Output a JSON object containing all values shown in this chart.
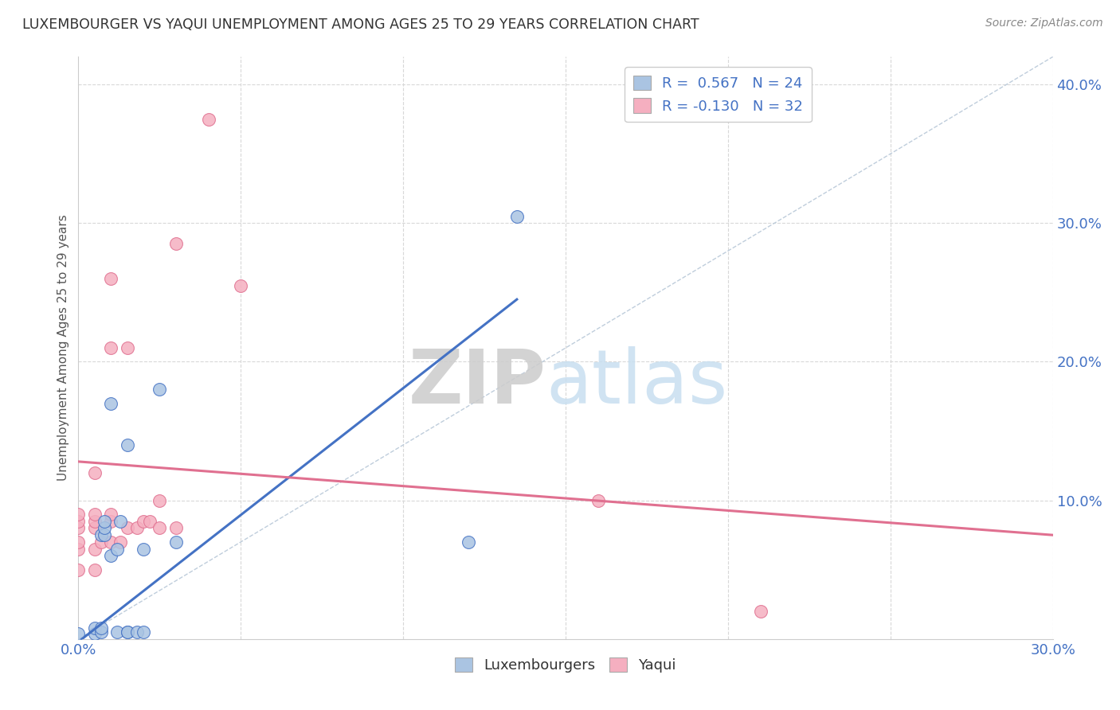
{
  "title": "LUXEMBOURGER VS YAQUI UNEMPLOYMENT AMONG AGES 25 TO 29 YEARS CORRELATION CHART",
  "source": "Source: ZipAtlas.com",
  "ylabel": "Unemployment Among Ages 25 to 29 years",
  "xlim": [
    0.0,
    0.3
  ],
  "ylim": [
    0.0,
    0.42
  ],
  "xticks": [
    0.0,
    0.05,
    0.1,
    0.15,
    0.2,
    0.25,
    0.3
  ],
  "xtick_labels": [
    "0.0%",
    "",
    "",
    "",
    "",
    "",
    "30.0%"
  ],
  "yticks": [
    0.0,
    0.1,
    0.2,
    0.3,
    0.4
  ],
  "ytick_labels": [
    "",
    "10.0%",
    "20.0%",
    "30.0%",
    "40.0%"
  ],
  "lux_R": 0.567,
  "lux_N": 24,
  "yaq_R": -0.13,
  "yaq_N": 32,
  "lux_color": "#aac4e2",
  "yaq_color": "#f5afc0",
  "lux_line_color": "#4472c4",
  "yaq_line_color": "#e07090",
  "diag_line_color": "#b8c8d8",
  "lux_x": [
    0.0,
    0.005,
    0.005,
    0.007,
    0.007,
    0.007,
    0.008,
    0.008,
    0.008,
    0.01,
    0.01,
    0.012,
    0.012,
    0.013,
    0.015,
    0.015,
    0.015,
    0.018,
    0.02,
    0.02,
    0.025,
    0.03,
    0.12,
    0.135
  ],
  "lux_y": [
    0.004,
    0.004,
    0.008,
    0.005,
    0.008,
    0.075,
    0.075,
    0.08,
    0.085,
    0.06,
    0.17,
    0.005,
    0.065,
    0.085,
    0.005,
    0.14,
    0.005,
    0.005,
    0.005,
    0.065,
    0.18,
    0.07,
    0.07,
    0.305
  ],
  "yaq_x": [
    0.0,
    0.0,
    0.0,
    0.0,
    0.0,
    0.0,
    0.005,
    0.005,
    0.005,
    0.005,
    0.005,
    0.005,
    0.007,
    0.01,
    0.01,
    0.01,
    0.01,
    0.01,
    0.013,
    0.015,
    0.015,
    0.018,
    0.02,
    0.022,
    0.025,
    0.025,
    0.03,
    0.03,
    0.04,
    0.05,
    0.16,
    0.21
  ],
  "yaq_y": [
    0.05,
    0.065,
    0.07,
    0.08,
    0.085,
    0.09,
    0.05,
    0.065,
    0.08,
    0.085,
    0.09,
    0.12,
    0.07,
    0.07,
    0.085,
    0.09,
    0.21,
    0.26,
    0.07,
    0.08,
    0.21,
    0.08,
    0.085,
    0.085,
    0.08,
    0.1,
    0.08,
    0.285,
    0.375,
    0.255,
    0.1,
    0.02
  ],
  "lux_line_x0": 0.0,
  "lux_line_y0": -0.002,
  "lux_line_x1": 0.135,
  "lux_line_y1": 0.245,
  "yaq_line_x0": 0.0,
  "yaq_line_y0": 0.128,
  "yaq_line_x1": 0.3,
  "yaq_line_y1": 0.075,
  "background_color": "#ffffff",
  "grid_color": "#d8d8d8"
}
